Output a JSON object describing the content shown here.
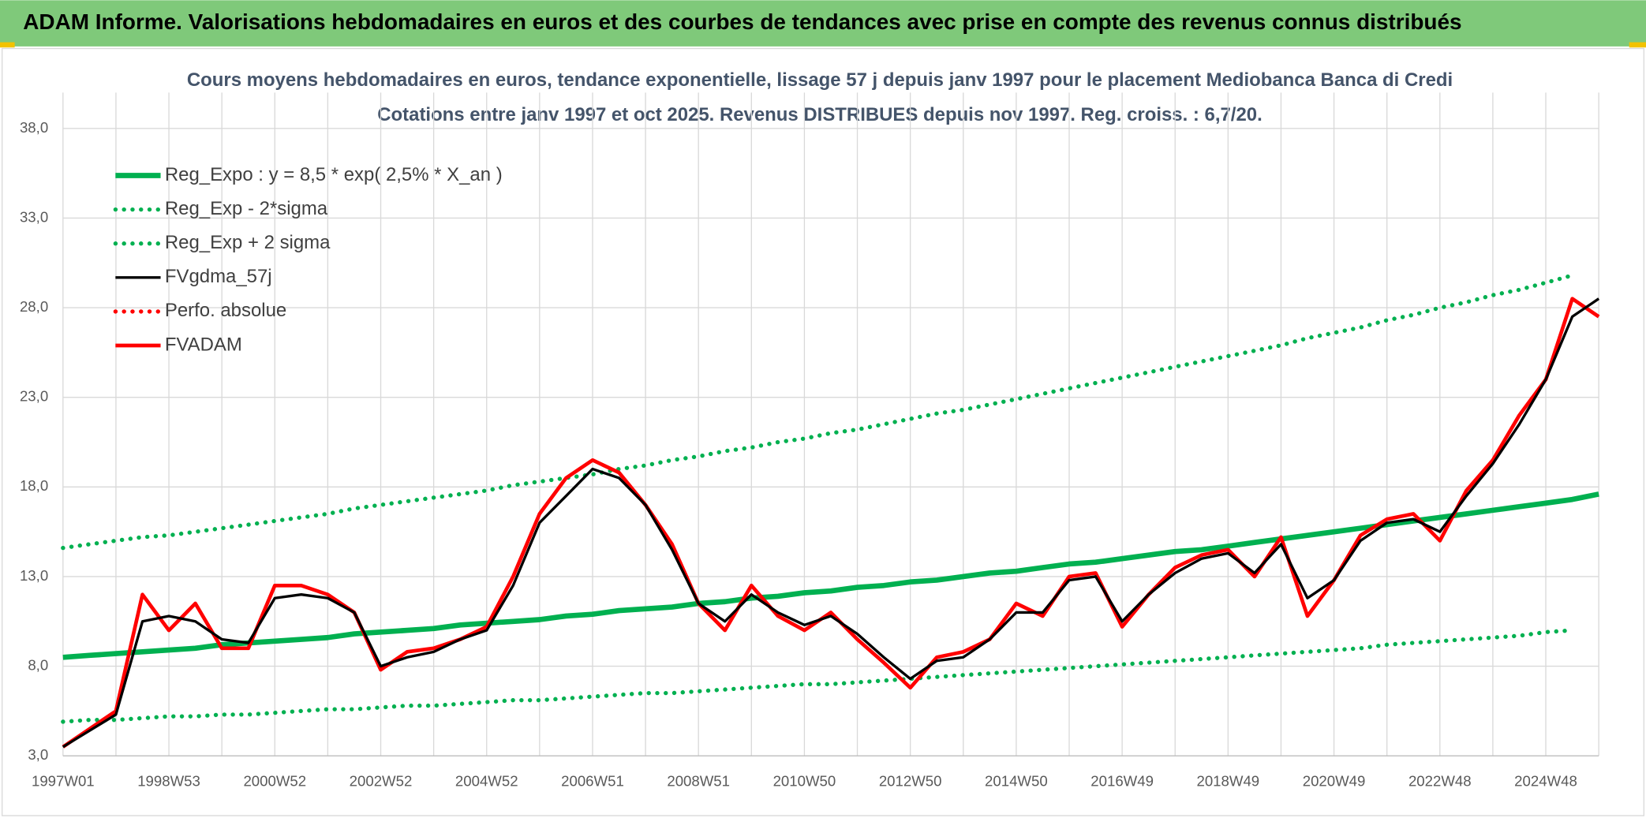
{
  "header": "ADAM Informe. Valorisations hebdomadaires en euros et des courbes de tendances avec prise en compte des revenus connus distribués",
  "chart_data": {
    "type": "line",
    "title": "Cours moyens hebdomadaires en euros, tendance exponentielle, lissage 57 j depuis janv 1997 pour le placement Mediobanca Banca di Credi",
    "subtitle": "Cotations entre janv 1997 et oct 2025. Revenus DISTRIBUES depuis nov 1997. Reg. croiss. : 6,7/20.",
    "categories": [
      "1997W01",
      null,
      null,
      null,
      "1998W53",
      null,
      null,
      null,
      "2000W52",
      null,
      null,
      null,
      "2002W52",
      null,
      null,
      null,
      "2004W52",
      null,
      null,
      null,
      "2006W51",
      null,
      null,
      null,
      "2008W51",
      null,
      null,
      null,
      "2010W50",
      null,
      null,
      null,
      "2012W50",
      null,
      null,
      null,
      "2014W50",
      null,
      null,
      null,
      "2016W49",
      null,
      null,
      null,
      "2018W49",
      null,
      null,
      null,
      "2020W49",
      null,
      null,
      null,
      "2022W48",
      null,
      null,
      null,
      "2024W48",
      null,
      null
    ],
    "ylim": [
      3,
      40
    ],
    "yticks": [
      {
        "value": 3,
        "label": "3,0"
      },
      {
        "value": 8,
        "label": "8,0"
      },
      {
        "value": 13,
        "label": "13,0"
      },
      {
        "value": 18,
        "label": "18,0"
      },
      {
        "value": 23,
        "label": "23,0"
      },
      {
        "value": 28,
        "label": "28,0"
      },
      {
        "value": 33,
        "label": "33,0"
      },
      {
        "value": 38,
        "label": "38,0"
      }
    ],
    "grid": true,
    "legend": "top-left",
    "series": [
      {
        "name": "Reg_Expo : y = 8,5 * exp( 2,5% *  X_an )",
        "color": "#00b050",
        "dash": "solid",
        "values": [
          8.5,
          8.6,
          8.7,
          8.8,
          8.9,
          9.0,
          9.2,
          9.3,
          9.4,
          9.5,
          9.6,
          9.8,
          9.9,
          10.0,
          10.1,
          10.3,
          10.4,
          10.5,
          10.6,
          10.8,
          10.9,
          11.1,
          11.2,
          11.3,
          11.5,
          11.6,
          11.8,
          11.9,
          12.1,
          12.2,
          12.4,
          12.5,
          12.7,
          12.8,
          13.0,
          13.2,
          13.3,
          13.5,
          13.7,
          13.8,
          14.0,
          14.2,
          14.4,
          14.5,
          14.7,
          14.9,
          15.1,
          15.3,
          15.5,
          15.7,
          15.9,
          16.1,
          16.3,
          16.5,
          16.7,
          16.9,
          17.1,
          17.3,
          17.6
        ]
      },
      {
        "name": "Reg_Exp - 2*sigma",
        "color": "#00b050",
        "dash": "dotted",
        "values": [
          4.9,
          5.0,
          5.0,
          5.1,
          5.2,
          5.2,
          5.3,
          5.3,
          5.4,
          5.5,
          5.6,
          5.6,
          5.7,
          5.8,
          5.8,
          5.9,
          6.0,
          6.1,
          6.1,
          6.2,
          6.3,
          6.4,
          6.5,
          6.5,
          6.6,
          6.7,
          6.8,
          6.9,
          7.0,
          7.0,
          7.1,
          7.2,
          7.3,
          7.4,
          7.5,
          7.6,
          7.7,
          7.8,
          7.9,
          8.0,
          8.1,
          8.2,
          8.3,
          8.4,
          8.5,
          8.6,
          8.7,
          8.8,
          8.9,
          9.0,
          9.2,
          9.3,
          9.4,
          9.5,
          9.6,
          9.7,
          9.9,
          10.0,
          null
        ]
      },
      {
        "name": "Reg_Exp + 2 sigma",
        "color": "#00b050",
        "dash": "dotted",
        "values": [
          14.6,
          14.8,
          15.0,
          15.2,
          15.3,
          15.5,
          15.7,
          15.9,
          16.1,
          16.3,
          16.5,
          16.8,
          17.0,
          17.2,
          17.4,
          17.6,
          17.8,
          18.1,
          18.3,
          18.5,
          18.7,
          19.0,
          19.2,
          19.5,
          19.7,
          20.0,
          20.2,
          20.5,
          20.7,
          21.0,
          21.2,
          21.5,
          21.8,
          22.1,
          22.3,
          22.6,
          22.9,
          23.2,
          23.5,
          23.8,
          24.1,
          24.4,
          24.7,
          25.0,
          25.3,
          25.6,
          25.9,
          26.3,
          26.6,
          26.9,
          27.3,
          27.6,
          28.0,
          28.3,
          28.7,
          29.0,
          29.4,
          29.8,
          null
        ]
      },
      {
        "name": "FVgdma_57j",
        "color": "#000000",
        "dash": "solid",
        "values": [
          3.5,
          4.4,
          5.3,
          10.5,
          10.8,
          10.5,
          9.5,
          9.3,
          11.8,
          12.0,
          11.8,
          11.0,
          8.0,
          8.5,
          8.8,
          9.5,
          10.0,
          12.5,
          16.0,
          17.5,
          19.0,
          18.5,
          17.0,
          14.5,
          11.5,
          10.5,
          12.0,
          11.0,
          10.3,
          10.8,
          9.8,
          8.5,
          7.3,
          8.3,
          8.5,
          9.5,
          11.0,
          11.0,
          12.8,
          13.0,
          10.5,
          12.0,
          13.2,
          14.0,
          14.3,
          13.2,
          14.8,
          11.8,
          12.8,
          15.0,
          16.0,
          16.2,
          15.5,
          17.5,
          19.3,
          21.5,
          24.0,
          27.5,
          28.5
        ]
      },
      {
        "name": "Perfo. absolue",
        "color": "#ff0000",
        "dash": "dotted",
        "values": [
          null,
          null,
          null,
          null,
          null,
          null,
          null,
          null,
          null,
          null,
          null,
          null,
          null,
          null,
          null,
          null,
          null,
          null,
          null,
          null,
          null,
          null,
          null,
          null,
          null,
          null,
          null,
          null,
          null,
          null,
          null,
          null,
          null,
          null,
          null,
          null,
          null,
          null,
          null,
          null,
          null,
          null,
          null,
          null,
          null,
          null,
          null,
          null,
          null,
          null,
          null,
          null,
          null,
          null,
          null,
          null,
          null,
          null,
          null
        ]
      },
      {
        "name": "FVADAM",
        "color": "#ff0000",
        "dash": "solid",
        "values": [
          3.5,
          4.5,
          5.5,
          12.0,
          10.0,
          11.5,
          9.0,
          9.0,
          12.5,
          12.5,
          12.0,
          11.0,
          7.8,
          8.8,
          9.0,
          9.5,
          10.2,
          13.0,
          16.5,
          18.5,
          19.5,
          18.8,
          17.0,
          14.8,
          11.5,
          10.0,
          12.5,
          10.8,
          10.0,
          11.0,
          9.5,
          8.2,
          6.8,
          8.5,
          8.8,
          9.5,
          11.5,
          10.8,
          13.0,
          13.2,
          10.2,
          12.0,
          13.5,
          14.2,
          14.5,
          13.0,
          15.2,
          10.8,
          12.8,
          15.3,
          16.2,
          16.5,
          15.0,
          17.8,
          19.5,
          22.0,
          24.0,
          28.5,
          27.5
        ]
      }
    ]
  }
}
